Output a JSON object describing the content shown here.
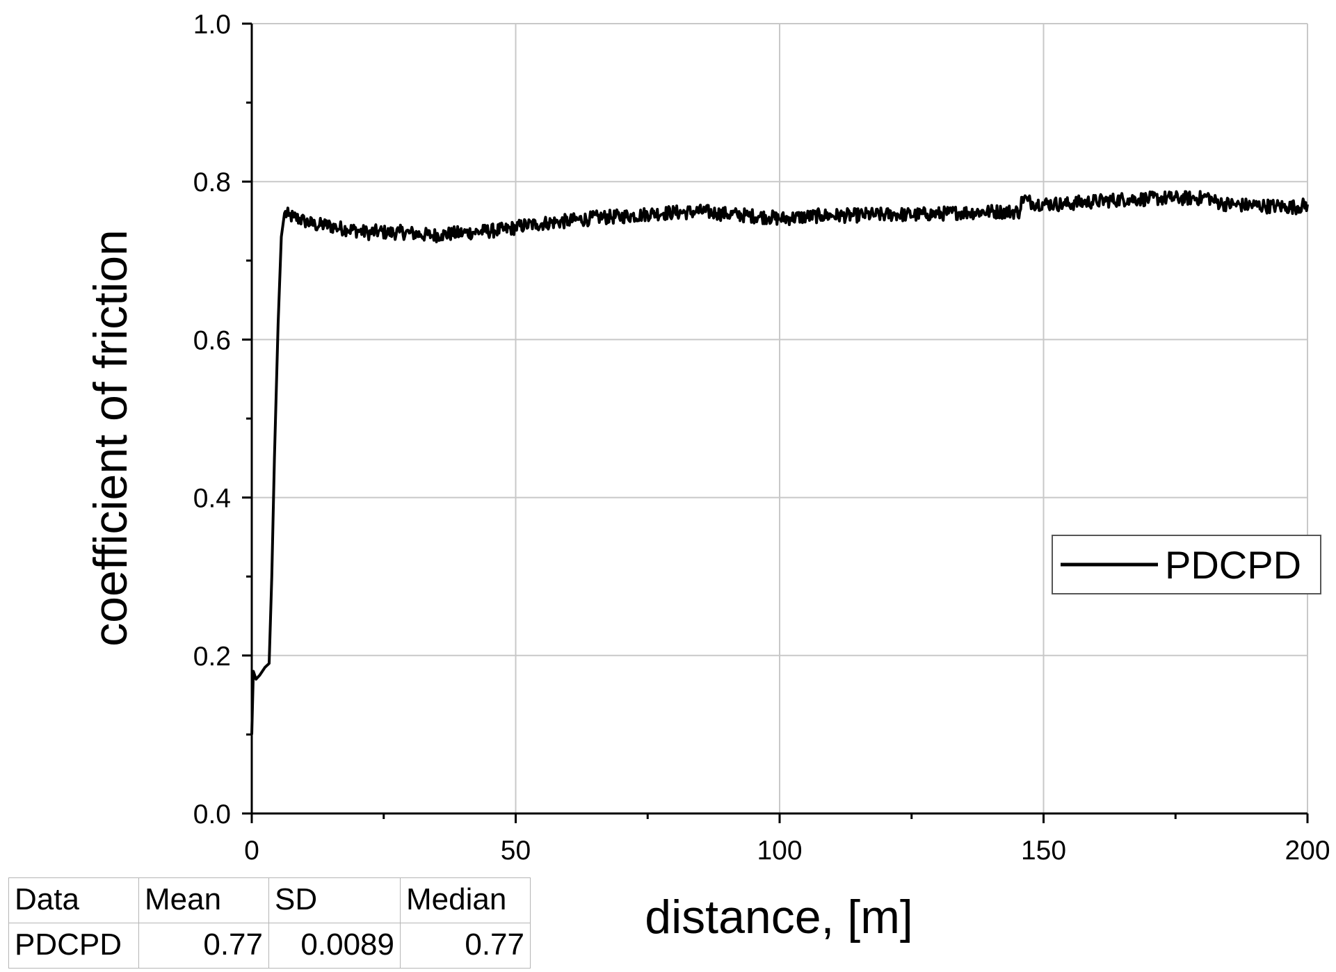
{
  "chart_data": {
    "type": "line",
    "xlabel": "distance, [m]",
    "ylabel": "coefficient of friction",
    "xlim": [
      0,
      200
    ],
    "ylim": [
      0,
      1.0
    ],
    "xticks": [
      "0",
      "50",
      "100",
      "150",
      "200"
    ],
    "yticks": [
      "0.0",
      "0.2",
      "0.4",
      "0.6",
      "0.8",
      "1.0"
    ],
    "grid": true,
    "legend_position": "right",
    "series": [
      {
        "name": "PDCPD",
        "color": "#000000",
        "x": [
          0,
          0.3,
          0.8,
          1.5,
          2.5,
          3.3,
          3.8,
          4.3,
          5.0,
          5.6,
          6.2,
          7,
          8,
          10,
          12,
          14,
          16,
          18,
          20,
          22,
          24,
          26,
          28,
          30,
          32,
          34,
          36,
          38,
          40,
          42,
          44,
          46,
          48,
          50,
          52,
          54,
          56,
          58,
          60,
          62,
          64,
          66,
          68,
          70,
          72,
          74,
          76,
          78,
          80,
          82,
          84,
          86,
          88,
          90,
          92,
          94,
          96,
          98,
          100,
          102,
          104,
          106,
          108,
          110,
          112,
          114,
          116,
          118,
          120,
          122,
          124,
          126,
          128,
          130,
          132,
          134,
          136,
          138,
          140,
          142,
          144,
          145.5,
          146,
          147,
          148,
          150,
          152,
          154,
          156,
          158,
          160,
          162,
          164,
          166,
          168,
          170,
          172,
          174,
          176,
          178,
          180,
          181,
          182,
          184,
          186,
          188,
          190,
          192,
          194,
          196,
          198,
          200
        ],
        "y": [
          0.1,
          0.18,
          0.17,
          0.175,
          0.185,
          0.19,
          0.3,
          0.45,
          0.62,
          0.73,
          0.76,
          0.757,
          0.755,
          0.75,
          0.745,
          0.745,
          0.742,
          0.74,
          0.738,
          0.735,
          0.737,
          0.735,
          0.736,
          0.735,
          0.733,
          0.732,
          0.733,
          0.734,
          0.735,
          0.736,
          0.737,
          0.738,
          0.739,
          0.742,
          0.745,
          0.746,
          0.748,
          0.749,
          0.75,
          0.752,
          0.753,
          0.755,
          0.755,
          0.756,
          0.757,
          0.758,
          0.76,
          0.76,
          0.761,
          0.761,
          0.762,
          0.762,
          0.76,
          0.759,
          0.758,
          0.757,
          0.756,
          0.755,
          0.753,
          0.754,
          0.755,
          0.756,
          0.757,
          0.757,
          0.757,
          0.757,
          0.758,
          0.758,
          0.758,
          0.759,
          0.758,
          0.758,
          0.759,
          0.759,
          0.76,
          0.761,
          0.761,
          0.762,
          0.762,
          0.762,
          0.762,
          0.762,
          0.78,
          0.776,
          0.773,
          0.772,
          0.772,
          0.771,
          0.773,
          0.774,
          0.775,
          0.776,
          0.777,
          0.778,
          0.778,
          0.778,
          0.779,
          0.779,
          0.779,
          0.779,
          0.779,
          0.782,
          0.776,
          0.772,
          0.771,
          0.77,
          0.77,
          0.769,
          0.769,
          0.768,
          0.768,
          0.771
        ]
      }
    ]
  },
  "stats_table": {
    "headers": [
      "Data",
      "Mean",
      "SD",
      "Median"
    ],
    "row": {
      "data": "PDCPD",
      "mean": "0.77",
      "sd": "0.0089",
      "median": "0.77"
    }
  }
}
